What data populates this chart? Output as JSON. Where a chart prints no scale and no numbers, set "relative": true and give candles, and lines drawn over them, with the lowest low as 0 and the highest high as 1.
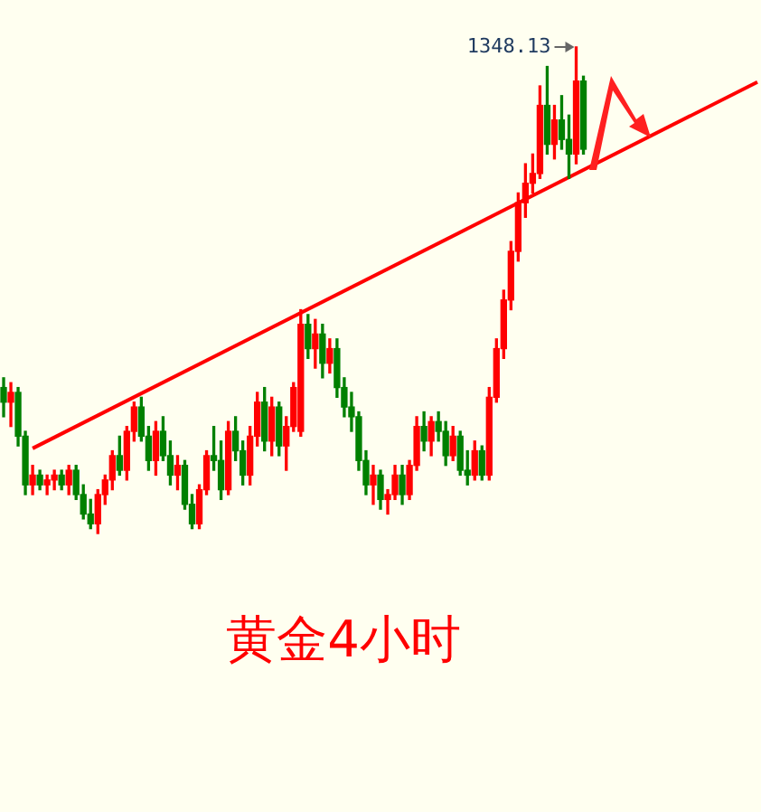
{
  "chart_data": {
    "type": "candlestick",
    "relative": true,
    "categories": [
      null,
      null,
      null,
      null,
      null,
      null,
      null,
      null,
      null,
      null,
      null,
      null,
      null,
      null,
      null,
      null,
      null,
      null,
      null,
      null,
      null,
      null,
      null,
      null,
      null,
      null,
      null,
      null,
      null,
      null,
      null,
      null,
      null,
      null,
      null,
      null,
      null,
      null,
      null,
      null,
      null,
      null,
      null,
      null,
      null,
      null,
      null,
      null,
      null,
      null,
      null,
      null,
      null,
      null,
      null,
      null,
      null,
      null,
      null,
      null,
      null,
      null,
      null,
      null,
      null,
      null,
      null,
      null,
      null,
      null,
      null,
      null,
      null,
      null,
      null,
      null,
      null,
      null,
      null,
      null,
      null,
      null,
      null,
      null,
      null,
      null,
      null,
      null,
      null,
      null,
      null,
      null,
      null,
      null,
      null,
      null,
      null,
      null,
      null,
      null,
      null,
      null,
      null,
      null,
      null
    ],
    "ohlc": [
      [
        0.3,
        0.32,
        0.24,
        0.27
      ],
      [
        0.27,
        0.31,
        0.22,
        0.29
      ],
      [
        0.29,
        0.3,
        0.18,
        0.2
      ],
      [
        0.2,
        0.21,
        0.08,
        0.1
      ],
      [
        0.1,
        0.14,
        0.08,
        0.12
      ],
      [
        0.12,
        0.13,
        0.09,
        0.1
      ],
      [
        0.1,
        0.12,
        0.08,
        0.11
      ],
      [
        0.11,
        0.13,
        0.09,
        0.12
      ],
      [
        0.12,
        0.13,
        0.09,
        0.1
      ],
      [
        0.1,
        0.14,
        0.08,
        0.13
      ],
      [
        0.13,
        0.14,
        0.07,
        0.08
      ],
      [
        0.08,
        0.1,
        0.03,
        0.04
      ],
      [
        0.04,
        0.07,
        0.01,
        0.02
      ],
      [
        0.02,
        0.09,
        0.0,
        0.08
      ],
      [
        0.08,
        0.12,
        0.06,
        0.11
      ],
      [
        0.11,
        0.17,
        0.09,
        0.16
      ],
      [
        0.16,
        0.2,
        0.12,
        0.13
      ],
      [
        0.13,
        0.22,
        0.11,
        0.21
      ],
      [
        0.21,
        0.27,
        0.19,
        0.26
      ],
      [
        0.26,
        0.28,
        0.19,
        0.2
      ],
      [
        0.2,
        0.22,
        0.13,
        0.15
      ],
      [
        0.15,
        0.23,
        0.12,
        0.21
      ],
      [
        0.21,
        0.24,
        0.15,
        0.16
      ],
      [
        0.16,
        0.19,
        0.1,
        0.12
      ],
      [
        0.12,
        0.16,
        0.09,
        0.14
      ],
      [
        0.14,
        0.15,
        0.05,
        0.06
      ],
      [
        0.06,
        0.08,
        0.01,
        0.02
      ],
      [
        0.02,
        0.1,
        0.01,
        0.09
      ],
      [
        0.09,
        0.17,
        0.08,
        0.16
      ],
      [
        0.16,
        0.22,
        0.13,
        0.15
      ],
      [
        0.15,
        0.19,
        0.07,
        0.09
      ],
      [
        0.09,
        0.23,
        0.08,
        0.21
      ],
      [
        0.21,
        0.24,
        0.15,
        0.17
      ],
      [
        0.17,
        0.19,
        0.1,
        0.12
      ],
      [
        0.12,
        0.22,
        0.1,
        0.2
      ],
      [
        0.2,
        0.29,
        0.18,
        0.27
      ],
      [
        0.27,
        0.3,
        0.17,
        0.19
      ],
      [
        0.19,
        0.28,
        0.16,
        0.26
      ],
      [
        0.26,
        0.27,
        0.16,
        0.18
      ],
      [
        0.18,
        0.24,
        0.13,
        0.22
      ],
      [
        0.22,
        0.31,
        0.21,
        0.3
      ],
      [
        0.21,
        0.46,
        0.2,
        0.43
      ],
      [
        0.43,
        0.45,
        0.36,
        0.38
      ],
      [
        0.38,
        0.44,
        0.34,
        0.41
      ],
      [
        0.41,
        0.43,
        0.32,
        0.35
      ],
      [
        0.35,
        0.4,
        0.33,
        0.38
      ],
      [
        0.38,
        0.4,
        0.28,
        0.3
      ],
      [
        0.3,
        0.32,
        0.24,
        0.26
      ],
      [
        0.26,
        0.29,
        0.21,
        0.24
      ],
      [
        0.24,
        0.25,
        0.13,
        0.15
      ],
      [
        0.15,
        0.17,
        0.08,
        0.1
      ],
      [
        0.1,
        0.14,
        0.06,
        0.12
      ],
      [
        0.12,
        0.13,
        0.05,
        0.07
      ],
      [
        0.07,
        0.09,
        0.04,
        0.08
      ],
      [
        0.08,
        0.14,
        0.07,
        0.12
      ],
      [
        0.12,
        0.14,
        0.06,
        0.08
      ],
      [
        0.08,
        0.15,
        0.07,
        0.14
      ],
      [
        0.14,
        0.24,
        0.13,
        0.22
      ],
      [
        0.22,
        0.25,
        0.17,
        0.19
      ],
      [
        0.19,
        0.24,
        0.16,
        0.23
      ],
      [
        0.23,
        0.25,
        0.19,
        0.21
      ],
      [
        0.21,
        0.23,
        0.14,
        0.16
      ],
      [
        0.16,
        0.22,
        0.15,
        0.2
      ],
      [
        0.2,
        0.21,
        0.12,
        0.13
      ],
      [
        0.13,
        0.17,
        0.1,
        0.12
      ],
      [
        0.12,
        0.19,
        0.11,
        0.17
      ],
      [
        0.17,
        0.18,
        0.11,
        0.12
      ],
      [
        0.12,
        0.3,
        0.11,
        0.28
      ],
      [
        0.28,
        0.4,
        0.27,
        0.38
      ],
      [
        0.38,
        0.5,
        0.36,
        0.48
      ],
      [
        0.48,
        0.6,
        0.46,
        0.58
      ],
      [
        0.58,
        0.7,
        0.56,
        0.68
      ],
      [
        0.68,
        0.76,
        0.65,
        0.72
      ],
      [
        0.72,
        0.78,
        0.7,
        0.74
      ],
      [
        0.74,
        0.92,
        0.73,
        0.88
      ],
      [
        0.88,
        0.96,
        0.78,
        0.8
      ],
      [
        0.8,
        0.88,
        0.77,
        0.85
      ],
      [
        0.85,
        0.9,
        0.79,
        0.81
      ],
      [
        0.81,
        0.86,
        0.73,
        0.78
      ],
      [
        0.78,
        1.0,
        0.76,
        0.93
      ],
      [
        0.93,
        0.94,
        0.78,
        0.79
      ],
      null,
      null,
      null,
      null,
      null,
      null,
      null,
      null,
      null,
      null,
      null,
      null,
      null,
      null,
      null,
      null,
      null,
      null,
      null,
      null,
      null,
      null,
      null,
      null
    ],
    "series": [
      {
        "type": "line",
        "color": "#ff0000",
        "values": [
          null,
          null,
          null,
          null,
          0.175,
          null,
          null,
          null,
          null,
          null,
          null,
          null,
          null,
          null,
          null,
          null,
          null,
          null,
          null,
          null,
          null,
          null,
          null,
          null,
          null,
          null,
          null,
          null,
          null,
          null,
          null,
          null,
          null,
          null,
          null,
          null,
          null,
          null,
          null,
          null,
          null,
          null,
          null,
          null,
          null,
          null,
          null,
          null,
          null,
          null,
          null,
          null,
          null,
          null,
          null,
          null,
          null,
          null,
          null,
          null,
          null,
          null,
          null,
          null,
          null,
          null,
          null,
          null,
          null,
          null,
          null,
          null,
          null,
          null,
          null,
          null,
          null,
          null,
          null,
          null,
          null,
          null,
          null,
          null,
          null,
          null,
          null,
          null,
          null,
          null,
          null,
          null,
          null,
          null,
          null,
          null,
          null,
          null,
          null,
          null,
          null,
          null,
          null,
          null,
          0.928
        ]
      }
    ],
    "annotations": [
      "1348.13",
      "黄金4小时"
    ]
  }
}
